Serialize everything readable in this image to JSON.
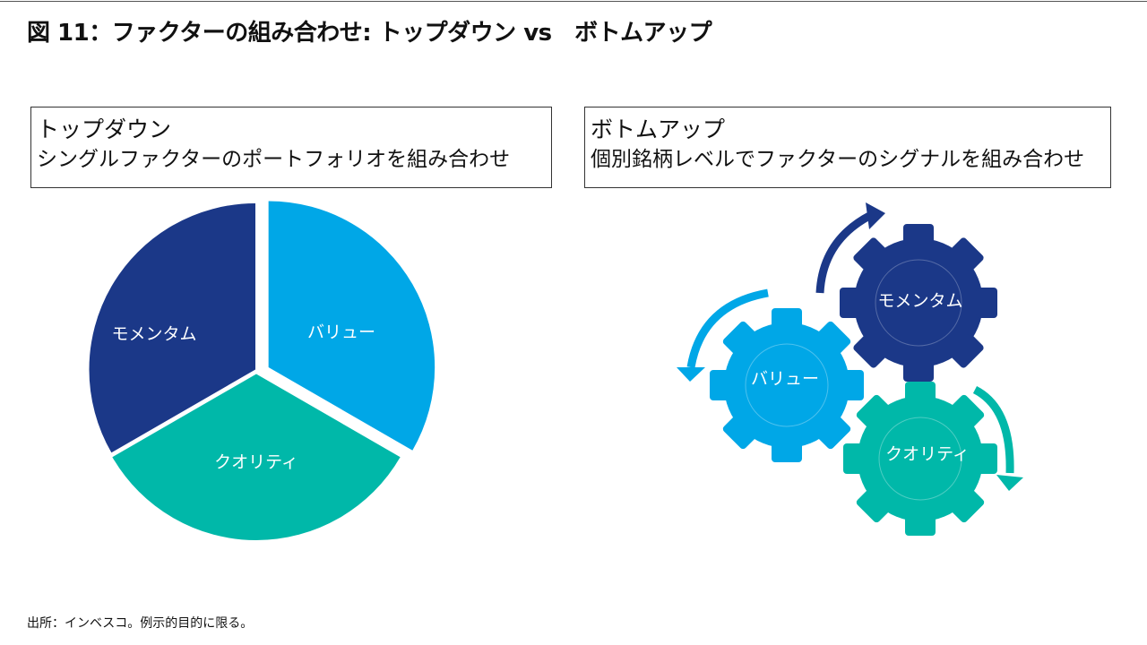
{
  "title": "図 11：ファクターの組み合わせ: トップダウン vs　ボトムアップ",
  "top_down": {
    "heading": "トップダウン",
    "description": "シングルファクターのポートフォリオを組み合わせ"
  },
  "bottom_up": {
    "heading": "ボトムアップ",
    "description": "個別銘柄レベルでファクターのシグナルを組み合わせ"
  },
  "factors": {
    "value": "バリュー",
    "momentum": "モメンタム",
    "quality": "クオリティ"
  },
  "colors": {
    "value": "#00a7e7",
    "momentum": "#1b3888",
    "quality": "#00b8a9"
  },
  "footer": "出所：インベスコ。例示的目的に限る。"
}
